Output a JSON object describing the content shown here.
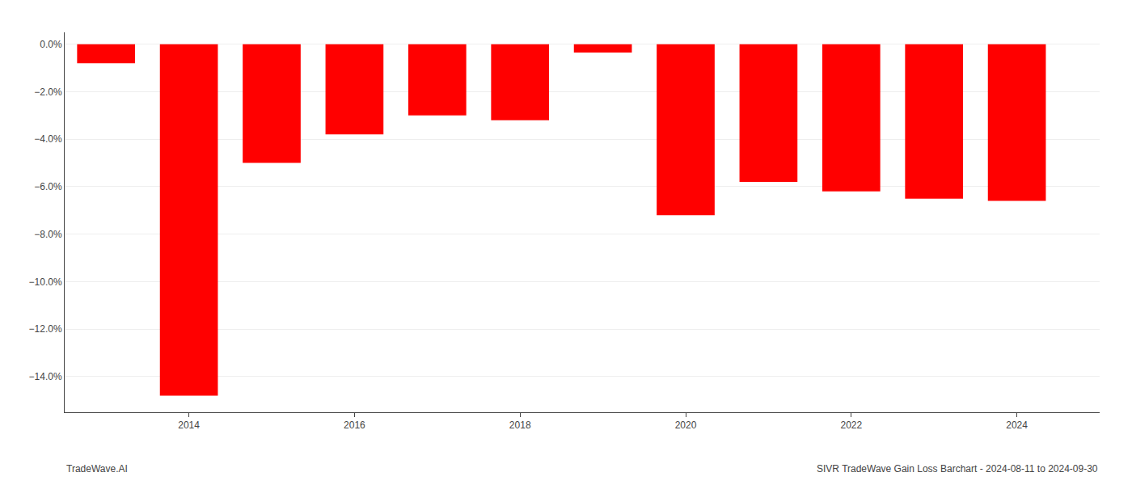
{
  "chart_data": {
    "type": "bar",
    "x": [
      2013,
      2014,
      2015,
      2016,
      2017,
      2018,
      2019,
      2020,
      2021,
      2022,
      2023,
      2024
    ],
    "values": [
      -0.8,
      -14.8,
      -5.0,
      -3.8,
      -3.0,
      -3.2,
      -0.35,
      -7.2,
      -5.8,
      -6.2,
      -6.5,
      -6.6
    ],
    "color": "#ff0000",
    "xlim": [
      2012.5,
      2025.0
    ],
    "xticks": [
      2014,
      2016,
      2018,
      2020,
      2022,
      2024
    ],
    "ylim": [
      -15.5,
      0.5
    ],
    "yticks": [
      {
        "value": 0.0,
        "label": "0.0%"
      },
      {
        "value": -2.0,
        "label": "−2.0%"
      },
      {
        "value": -4.0,
        "label": "−4.0%"
      },
      {
        "value": -6.0,
        "label": "−6.0%"
      },
      {
        "value": -8.0,
        "label": "−8.0%"
      },
      {
        "value": -10.0,
        "label": "−10.0%"
      },
      {
        "value": -12.0,
        "label": "−12.0%"
      },
      {
        "value": -14.0,
        "label": "−14.0%"
      }
    ],
    "grid": "y",
    "annotations": [
      "TradeWave.AI",
      "SIVR TradeWave Gain Loss Barchart - 2024-08-11 to 2024-09-30"
    ]
  }
}
